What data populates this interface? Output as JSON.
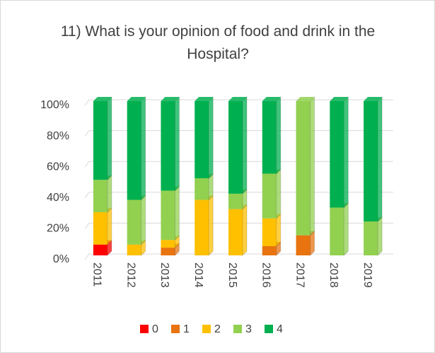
{
  "chart_data": {
    "type": "bar",
    "stacked": true,
    "title": "11) What is your opinion of food and drink in the Hospital?",
    "categories": [
      "2011",
      "2012",
      "2013",
      "2014",
      "2015",
      "2016",
      "2017",
      "2018",
      "2019"
    ],
    "series": [
      {
        "name": "0",
        "color": "#ff0000",
        "values": [
          7,
          0,
          0,
          0,
          0,
          0,
          0,
          0,
          0
        ]
      },
      {
        "name": "1",
        "color": "#e8730f",
        "values": [
          0,
          0,
          5,
          0,
          0,
          6,
          13,
          0,
          0
        ]
      },
      {
        "name": "2",
        "color": "#ffc000",
        "values": [
          21,
          7,
          5,
          36,
          30,
          18,
          0,
          0,
          0
        ]
      },
      {
        "name": "3",
        "color": "#92d050",
        "values": [
          21,
          29,
          32,
          14,
          10,
          29,
          87,
          31,
          22
        ]
      },
      {
        "name": "4",
        "color": "#00b050",
        "values": [
          51,
          64,
          58,
          50,
          60,
          47,
          0,
          69,
          78
        ]
      }
    ],
    "ylim": [
      0,
      100
    ],
    "yticks": [
      {
        "value": 0,
        "label": "0%"
      },
      {
        "value": 20,
        "label": "20%"
      },
      {
        "value": 40,
        "label": "40%"
      },
      {
        "value": 60,
        "label": "60%"
      },
      {
        "value": 80,
        "label": "80%"
      },
      {
        "value": 100,
        "label": "100%"
      }
    ],
    "grid": true,
    "legend": "bottom"
  }
}
